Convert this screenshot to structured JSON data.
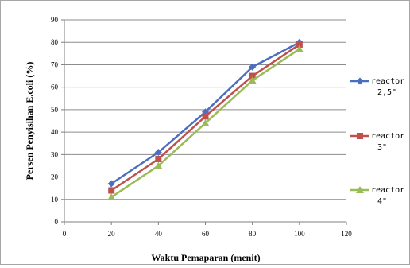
{
  "chart_data": {
    "type": "line",
    "title": "",
    "xlabel": "Waktu Pemaparan (menit)",
    "ylabel": "Persen Penyisihan E.coli (%)",
    "xlim": [
      0,
      120
    ],
    "ylim": [
      0,
      90
    ],
    "x_ticks": [
      0,
      20,
      40,
      60,
      80,
      100,
      120
    ],
    "y_ticks": [
      0,
      10,
      20,
      30,
      40,
      50,
      60,
      70,
      80,
      90
    ],
    "grid": "horizontal",
    "legend_position": "right",
    "series": [
      {
        "name": "reactor 2,5\"",
        "color": "#4a6fc2",
        "marker": "diamond",
        "x": [
          20,
          40,
          60,
          80,
          100
        ],
        "y": [
          17,
          31,
          49,
          69,
          80
        ]
      },
      {
        "name": "reactor 3\"",
        "color": "#c0504d",
        "marker": "square",
        "x": [
          20,
          40,
          60,
          80,
          100
        ],
        "y": [
          14,
          28,
          47,
          65,
          79
        ]
      },
      {
        "name": "reactor 4\"",
        "color": "#9bbb59",
        "marker": "triangle",
        "x": [
          20,
          40,
          60,
          80,
          100
        ],
        "y": [
          11,
          25,
          44,
          63,
          77
        ]
      }
    ]
  }
}
